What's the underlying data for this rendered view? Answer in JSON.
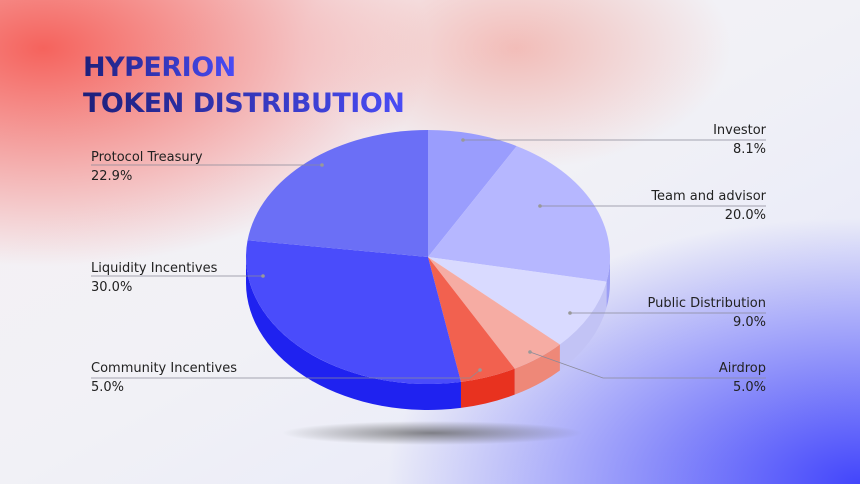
{
  "chart_data": {
    "type": "pie",
    "title": "HYPERION",
    "subtitle": "TOKEN DISTRIBUTION",
    "categories": [
      "Investor",
      "Team and advisor",
      "Public Distribution",
      "Airdrop",
      "Community Incentives",
      "Liquidity Incentives",
      "Protocol Treasury"
    ],
    "values": [
      8.1,
      20.0,
      9.0,
      5.0,
      5.0,
      30.0,
      22.9
    ],
    "value_labels": [
      "8.1%",
      "20.0%",
      "9.0%",
      "5.0%",
      "5.0%",
      "30.0%",
      "22.9%"
    ],
    "colors": [
      "#9a9dfd",
      "#b6b7ff",
      "#d9daff",
      "#f6aca3",
      "#f2614f",
      "#4a4cfb",
      "#6b6ff6"
    ]
  }
}
